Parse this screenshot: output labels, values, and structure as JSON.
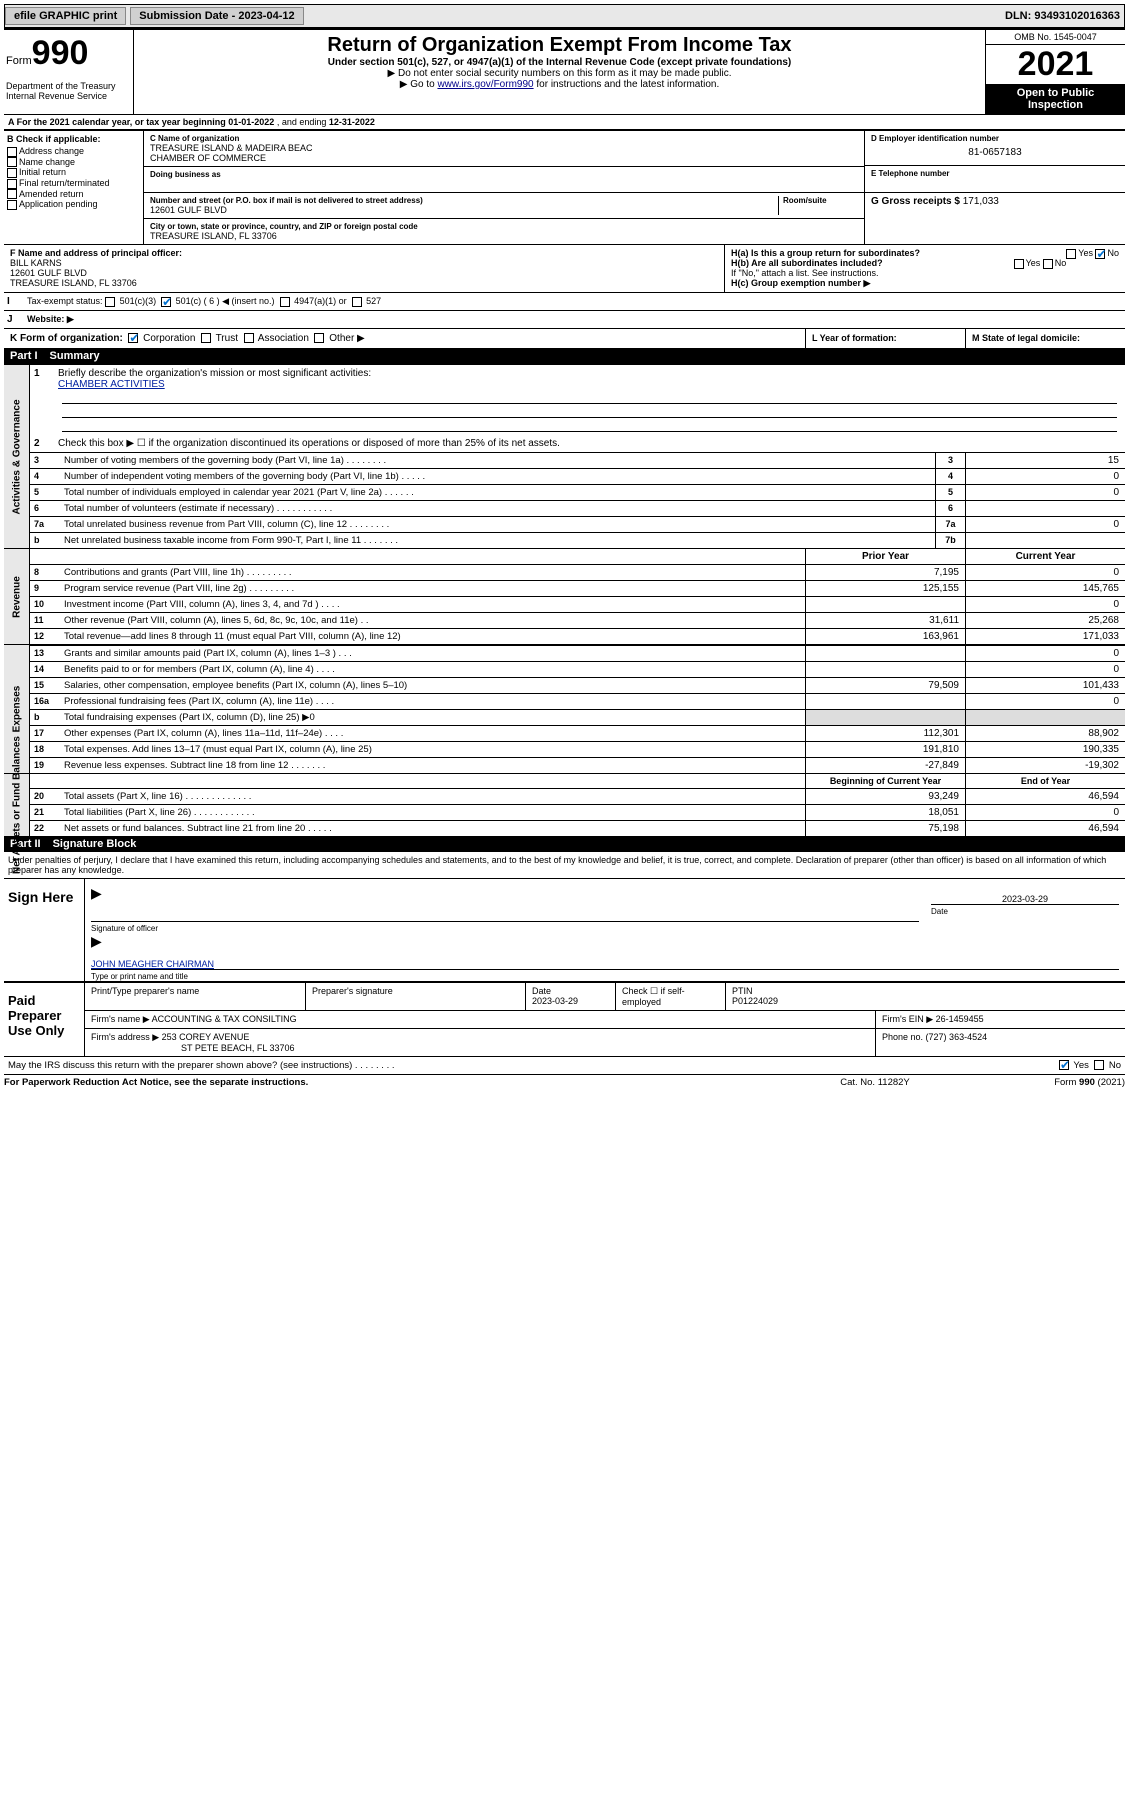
{
  "topbar": {
    "efile": "efile GRAPHIC print",
    "subdate_label": "Submission Date - ",
    "subdate": "2023-04-12",
    "dln_label": "DLN: ",
    "dln": "93493102016363"
  },
  "header": {
    "form_word": "Form",
    "form_no": "990",
    "dept": "Department of the Treasury",
    "irs": "Internal Revenue Service",
    "title": "Return of Organization Exempt From Income Tax",
    "sub1": "Under section 501(c), 527, or 4947(a)(1) of the Internal Revenue Code (except private foundations)",
    "sub2": "▶ Do not enter social security numbers on this form as it may be made public.",
    "sub3_pre": "▶ Go to ",
    "sub3_link": "www.irs.gov/Form990",
    "sub3_post": " for instructions and the latest information.",
    "omb": "OMB No. 1545-0047",
    "year": "2021",
    "inspect1": "Open to Public",
    "inspect2": "Inspection"
  },
  "A": {
    "label": "A For the 2021 calendar year, or tax year beginning ",
    "begin": "01-01-2022",
    "mid": " , and ending ",
    "end": "12-31-2022"
  },
  "B": {
    "title": "B Check if applicable:",
    "items": [
      "Address change",
      "Name change",
      "Initial return",
      "Final return/terminated",
      "Amended return",
      "Application pending"
    ]
  },
  "C": {
    "name_lab": "C Name of organization",
    "name1": "TREASURE ISLAND & MADEIRA BEAC",
    "name2": "CHAMBER OF COMMERCE",
    "dba_lab": "Doing business as",
    "addr_lab": "Number and street (or P.O. box if mail is not delivered to street address)",
    "room_lab": "Room/suite",
    "addr": "12601 GULF BLVD",
    "city_lab": "City or town, state or province, country, and ZIP or foreign postal code",
    "city": "TREASURE ISLAND, FL  33706"
  },
  "D": {
    "lab": "D Employer identification number",
    "val": "81-0657183"
  },
  "E": {
    "lab": "E Telephone number",
    "val": ""
  },
  "G": {
    "lab": "G Gross receipts $ ",
    "val": "171,033"
  },
  "F": {
    "lab": "F  Name and address of principal officer:",
    "name": "BILL KARNS",
    "addr1": "12601 GULF BLVD",
    "addr2": "TREASURE ISLAND, FL  33706"
  },
  "H": {
    "a": "H(a)  Is this a group return for subordinates?",
    "yes": "Yes",
    "no": "No",
    "b": "H(b)  Are all subordinates included?",
    "bnote": "If \"No,\" attach a list. See instructions.",
    "c": "H(c)  Group exemption number ▶"
  },
  "I": {
    "lab": "Tax-exempt status:",
    "opts": [
      "501(c)(3)",
      "501(c) ( 6 ) ◀ (insert no.)",
      "4947(a)(1) or",
      "527"
    ]
  },
  "J": {
    "lab": "Website: ▶"
  },
  "K": {
    "lab": "K Form of organization:",
    "opts": [
      "Corporation",
      "Trust",
      "Association",
      "Other ▶"
    ]
  },
  "L": {
    "lab": "L Year of formation:"
  },
  "M": {
    "lab": "M State of legal domicile:"
  },
  "part1": {
    "num": "Part I",
    "title": "Summary"
  },
  "summary_top": {
    "line1_n": "1",
    "line1": "Briefly describe the organization's mission or most significant activities:",
    "line1_val": "CHAMBER ACTIVITIES",
    "line2_n": "2",
    "line2": "Check this box ▶ ☐  if the organization discontinued its operations or disposed of more than 25% of its net assets."
  },
  "sidebar_labels": {
    "ag": "Activities & Governance",
    "rev": "Revenue",
    "exp": "Expenses",
    "net": "Net Assets or Fund Balances"
  },
  "numbered": [
    {
      "n": "3",
      "d": "Number of voting members of the governing body (Part VI, line 1a)  .    .    .    .    .    .    .    .",
      "ln": "3",
      "v": "15"
    },
    {
      "n": "4",
      "d": "Number of independent voting members of the governing body (Part VI, line 1b)   .   .   .   .   .",
      "ln": "4",
      "v": "0"
    },
    {
      "n": "5",
      "d": "Total number of individuals employed in calendar year 2021 (Part V, line 2a)   .   .   .   .   .   .",
      "ln": "5",
      "v": "0"
    },
    {
      "n": "6",
      "d": "Total number of volunteers (estimate if necessary)   .    .    .    .    .    .    .    .    .    .    .",
      "ln": "6",
      "v": ""
    },
    {
      "n": "7a",
      "d": "Total unrelated business revenue from Part VIII, column (C), line 12   .   .   .   .   .   .   .   .",
      "ln": "7a",
      "v": "0"
    },
    {
      "n": "b",
      "d": "Net unrelated business taxable income from Form 990-T, Part I, line 11   .   .   .   .   .   .   .",
      "ln": "7b",
      "v": ""
    }
  ],
  "twocol_header": {
    "c1": "Prior Year",
    "c2": "Current Year"
  },
  "revenue_rows": [
    {
      "n": "8",
      "d": "Contributions and grants (Part VIII, line 1h)   .   .   .   .   .   .   .   .   .",
      "c1": "7,195",
      "c2": "0"
    },
    {
      "n": "9",
      "d": "Program service revenue (Part VIII, line 2g)   .   .   .   .   .   .   .   .   .",
      "c1": "125,155",
      "c2": "145,765"
    },
    {
      "n": "10",
      "d": "Investment income (Part VIII, column (A), lines 3, 4, and 7d )   .   .   .   .",
      "c1": "",
      "c2": "0"
    },
    {
      "n": "11",
      "d": "Other revenue (Part VIII, column (A), lines 5, 6d, 8c, 9c, 10c, and 11e)   .   .",
      "c1": "31,611",
      "c2": "25,268"
    },
    {
      "n": "12",
      "d": "Total revenue—add lines 8 through 11 (must equal Part VIII, column (A), line 12)",
      "c1": "163,961",
      "c2": "171,033"
    }
  ],
  "expense_rows": [
    {
      "n": "13",
      "d": "Grants and similar amounts paid (Part IX, column (A), lines 1–3 )   .   .   .",
      "c1": "",
      "c2": "0"
    },
    {
      "n": "14",
      "d": "Benefits paid to or for members (Part IX, column (A), line 4)   .   .   .   .",
      "c1": "",
      "c2": "0"
    },
    {
      "n": "15",
      "d": "Salaries, other compensation, employee benefits (Part IX, column (A), lines 5–10)",
      "c1": "79,509",
      "c2": "101,433"
    },
    {
      "n": "16a",
      "d": "Professional fundraising fees (Part IX, column (A), line 11e)   .   .   .   .",
      "c1": "",
      "c2": "0"
    },
    {
      "n": "b",
      "d": "Total fundraising expenses (Part IX, column (D), line 25) ▶0",
      "c1": "GRAY",
      "c2": "GRAY"
    },
    {
      "n": "17",
      "d": "Other expenses (Part IX, column (A), lines 11a–11d, 11f–24e)   .   .   .   .",
      "c1": "112,301",
      "c2": "88,902"
    },
    {
      "n": "18",
      "d": "Total expenses. Add lines 13–17 (must equal Part IX, column (A), line 25)",
      "c1": "191,810",
      "c2": "190,335"
    },
    {
      "n": "19",
      "d": "Revenue less expenses. Subtract line 18 from line 12   .   .   .   .   .   .   .",
      "c1": "-27,849",
      "c2": "-19,302"
    }
  ],
  "net_header": {
    "c1": "Beginning of Current Year",
    "c2": "End of Year"
  },
  "net_rows": [
    {
      "n": "20",
      "d": "Total assets (Part X, line 16)   .   .   .   .   .   .   .   .   .   .   .   .   .",
      "c1": "93,249",
      "c2": "46,594"
    },
    {
      "n": "21",
      "d": "Total liabilities (Part X, line 26)   .   .   .   .   .   .   .   .   .   .   .   .",
      "c1": "18,051",
      "c2": "0"
    },
    {
      "n": "22",
      "d": "Net assets or fund balances. Subtract line 21 from line 20   .   .   .   .   .",
      "c1": "75,198",
      "c2": "46,594"
    }
  ],
  "part2": {
    "num": "Part II",
    "title": "Signature Block"
  },
  "sig_decl": "Under penalties of perjury, I declare that I have examined this return, including accompanying schedules and statements, and to the best of my knowledge and belief, it is true, correct, and complete. Declaration of preparer (other than officer) is based on all information of which preparer has any knowledge.",
  "sign": {
    "here": "Sign Here",
    "sig_lab": "Signature of officer",
    "date_lab": "Date",
    "date": "2023-03-29",
    "name": "JOHN MEAGHER  CHAIRMAN",
    "name_lab": "Type or print name and title"
  },
  "paid": {
    "title": "Paid Preparer Use Only",
    "row1": {
      "c1": "Print/Type preparer's name",
      "c2": "Preparer's signature",
      "c3": "Date",
      "c3v": "2023-03-29",
      "c4": "Check ☐ if self-employed",
      "c5": "PTIN",
      "c5v": "P01224029"
    },
    "row2": {
      "lab": "Firm's name   ▶ ",
      "val": "ACCOUNTING & TAX CONSILTING",
      "einlab": "Firm's EIN ▶ ",
      "ein": "26-1459455"
    },
    "row3": {
      "lab": "Firm's address ▶ ",
      "val1": "253 COREY AVENUE",
      "val2": "ST PETE BEACH, FL  33706",
      "phonelab": "Phone no. ",
      "phone": "(727) 363-4524"
    }
  },
  "discuss": {
    "q": "May the IRS discuss this return with the preparer shown above? (see instructions)   .   .   .   .   .   .   .   .",
    "yes": "Yes",
    "no": "No"
  },
  "footer": {
    "left": "For Paperwork Reduction Act Notice, see the separate instructions.",
    "mid": "Cat. No. 11282Y",
    "right": "Form 990 (2021)"
  }
}
